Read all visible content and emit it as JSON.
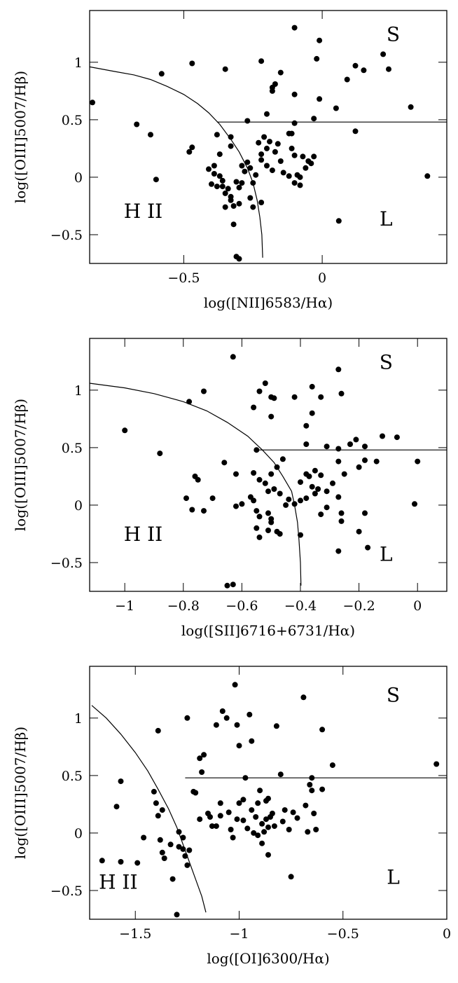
{
  "chart_data": [
    {
      "type": "scatter",
      "xlabel": "log([NII]6583/Hα)",
      "ylabel": "log([OIII]5007/Hβ)",
      "xlim": [
        -0.84,
        0.45
      ],
      "ylim": [
        -0.75,
        1.45
      ],
      "xticks": [
        -0.5,
        0
      ],
      "xticklabels": [
        "−0.5",
        "0"
      ],
      "yticks": [
        -0.5,
        0,
        0.5,
        1
      ],
      "yticklabels": [
        "−0.5",
        "0",
        "0.5",
        "1"
      ],
      "region_labels": {
        "hii": "H  II",
        "seyfert": "S",
        "liner": "L"
      },
      "divider": {
        "y": 0.48,
        "x_start": -0.38,
        "x_end": 0.45
      },
      "boundary": [
        [
          -0.84,
          0.96
        ],
        [
          -0.75,
          0.92
        ],
        [
          -0.68,
          0.89
        ],
        [
          -0.62,
          0.85
        ],
        [
          -0.56,
          0.79
        ],
        [
          -0.5,
          0.72
        ],
        [
          -0.45,
          0.64
        ],
        [
          -0.41,
          0.56
        ],
        [
          -0.37,
          0.46
        ],
        [
          -0.33,
          0.33
        ],
        [
          -0.3,
          0.22
        ],
        [
          -0.27,
          0.08
        ],
        [
          -0.25,
          -0.05
        ],
        [
          -0.235,
          -0.2
        ],
        [
          -0.225,
          -0.35
        ],
        [
          -0.218,
          -0.5
        ],
        [
          -0.215,
          -0.7
        ]
      ],
      "points": [
        [
          -0.83,
          0.65
        ],
        [
          -0.67,
          0.46
        ],
        [
          -0.62,
          0.37
        ],
        [
          -0.58,
          0.9
        ],
        [
          -0.6,
          -0.02
        ],
        [
          -0.47,
          0.99
        ],
        [
          -0.48,
          0.22
        ],
        [
          -0.47,
          0.26
        ],
        [
          -0.35,
          0.94
        ],
        [
          -0.22,
          1.01
        ],
        [
          -0.1,
          1.3
        ],
        [
          -0.01,
          1.19
        ],
        [
          -0.02,
          1.03
        ],
        [
          0.22,
          1.07
        ],
        [
          0.12,
          0.97
        ],
        [
          0.15,
          0.93
        ],
        [
          0.24,
          0.94
        ],
        [
          0.32,
          0.61
        ],
        [
          0.09,
          0.85
        ],
        [
          -0.15,
          0.91
        ],
        [
          -0.18,
          0.78
        ],
        [
          -0.17,
          0.81
        ],
        [
          -0.18,
          0.75
        ],
        [
          -0.1,
          0.72
        ],
        [
          -0.01,
          0.68
        ],
        [
          0.05,
          0.6
        ],
        [
          -0.2,
          0.55
        ],
        [
          -0.27,
          0.49
        ],
        [
          -0.1,
          0.47
        ],
        [
          -0.03,
          0.51
        ],
        [
          0.12,
          0.4
        ],
        [
          -0.38,
          0.37
        ],
        [
          -0.33,
          0.35
        ],
        [
          -0.33,
          0.27
        ],
        [
          -0.37,
          0.2
        ],
        [
          -0.39,
          0.1
        ],
        [
          -0.41,
          0.07
        ],
        [
          -0.39,
          0.03
        ],
        [
          -0.37,
          0.01
        ],
        [
          -0.36,
          -0.03
        ],
        [
          -0.4,
          -0.06
        ],
        [
          -0.38,
          -0.08
        ],
        [
          -0.34,
          -0.1
        ],
        [
          -0.35,
          -0.14
        ],
        [
          -0.33,
          -0.17
        ],
        [
          -0.33,
          -0.2
        ],
        [
          -0.32,
          -0.25
        ],
        [
          -0.3,
          -0.23
        ],
        [
          -0.35,
          -0.26
        ],
        [
          -0.32,
          -0.41
        ],
        [
          -0.31,
          -0.69
        ],
        [
          -0.3,
          -0.71
        ],
        [
          -0.26,
          -0.18
        ],
        [
          -0.25,
          -0.26
        ],
        [
          -0.27,
          0.13
        ],
        [
          -0.26,
          0.08
        ],
        [
          -0.24,
          0.02
        ],
        [
          -0.25,
          -0.05
        ],
        [
          -0.22,
          0.2
        ],
        [
          -0.23,
          0.3
        ],
        [
          -0.21,
          0.35
        ],
        [
          -0.2,
          0.25
        ],
        [
          -0.22,
          0.15
        ],
        [
          -0.19,
          0.31
        ],
        [
          -0.17,
          0.22
        ],
        [
          -0.16,
          0.29
        ],
        [
          -0.15,
          0.14
        ],
        [
          -0.14,
          0.04
        ],
        [
          -0.12,
          0.38
        ],
        [
          -0.11,
          0.38
        ],
        [
          -0.11,
          0.25
        ],
        [
          -0.1,
          0.19
        ],
        [
          -0.12,
          0.01
        ],
        [
          -0.09,
          0.02
        ],
        [
          -0.1,
          -0.05
        ],
        [
          -0.08,
          -0.07
        ],
        [
          -0.07,
          0.18
        ],
        [
          -0.05,
          0.14
        ],
        [
          -0.04,
          0.12
        ],
        [
          -0.03,
          0.18
        ],
        [
          -0.06,
          0.08
        ],
        [
          -0.08,
          0.0
        ],
        [
          -0.18,
          0.06
        ],
        [
          -0.2,
          0.1
        ],
        [
          -0.22,
          -0.22
        ],
        [
          -0.28,
          0.05
        ],
        [
          -0.29,
          0.1
        ],
        [
          -0.29,
          -0.05
        ],
        [
          -0.31,
          -0.04
        ],
        [
          -0.3,
          -0.09
        ],
        [
          -0.36,
          -0.08
        ],
        [
          0.06,
          -0.38
        ],
        [
          0.38,
          0.01
        ]
      ]
    },
    {
      "type": "scatter",
      "xlabel": "log([SII]6716+6731/Hα)",
      "ylabel": "log([OIII]5007/Hβ)",
      "xlim": [
        -1.12,
        0.1
      ],
      "ylim": [
        -0.75,
        1.45
      ],
      "xticks": [
        -1,
        -0.8,
        -0.6,
        -0.4,
        -0.2,
        0
      ],
      "xticklabels": [
        "−1",
        "−0.8",
        "−0.6",
        "−0.4",
        "−0.2",
        "0"
      ],
      "yticks": [
        -0.5,
        0,
        0.5,
        1
      ],
      "yticklabels": [
        "−0.5",
        "0",
        "0.5",
        "1"
      ],
      "region_labels": {
        "hii": "H  II",
        "seyfert": "S",
        "liner": "L"
      },
      "divider": {
        "y": 0.48,
        "x_start": -0.55,
        "x_end": 0.1
      },
      "boundary": [
        [
          -1.12,
          1.06
        ],
        [
          -1.0,
          1.02
        ],
        [
          -0.9,
          0.97
        ],
        [
          -0.8,
          0.9
        ],
        [
          -0.72,
          0.82
        ],
        [
          -0.65,
          0.72
        ],
        [
          -0.58,
          0.6
        ],
        [
          -0.53,
          0.48
        ],
        [
          -0.49,
          0.37
        ],
        [
          -0.46,
          0.25
        ],
        [
          -0.43,
          0.12
        ],
        [
          -0.42,
          0.0
        ],
        [
          -0.41,
          -0.15
        ],
        [
          -0.405,
          -0.3
        ],
        [
          -0.4,
          -0.5
        ],
        [
          -0.398,
          -0.7
        ]
      ],
      "points": [
        [
          -1.0,
          0.65
        ],
        [
          -0.88,
          0.45
        ],
        [
          -0.78,
          0.9
        ],
        [
          -0.73,
          0.99
        ],
        [
          -0.63,
          1.29
        ],
        [
          -0.54,
          0.99
        ],
        [
          -0.52,
          1.06
        ],
        [
          -0.5,
          0.94
        ],
        [
          -0.49,
          0.93
        ],
        [
          -0.5,
          0.77
        ],
        [
          -0.56,
          0.85
        ],
        [
          -0.42,
          0.94
        ],
        [
          -0.36,
          1.03
        ],
        [
          -0.33,
          0.94
        ],
        [
          -0.27,
          1.18
        ],
        [
          -0.26,
          0.97
        ],
        [
          -0.36,
          0.8
        ],
        [
          -0.38,
          0.69
        ],
        [
          -0.38,
          0.53
        ],
        [
          -0.31,
          0.51
        ],
        [
          -0.27,
          0.49
        ],
        [
          -0.23,
          0.53
        ],
        [
          -0.18,
          0.51
        ],
        [
          -0.21,
          0.57
        ],
        [
          -0.12,
          0.6
        ],
        [
          -0.07,
          0.59
        ],
        [
          -0.18,
          0.39
        ],
        [
          -0.2,
          0.33
        ],
        [
          -0.27,
          0.38
        ],
        [
          -0.25,
          0.27
        ],
        [
          -0.35,
          0.3
        ],
        [
          -0.29,
          0.19
        ],
        [
          -0.31,
          0.12
        ],
        [
          -0.33,
          0.26
        ],
        [
          -0.37,
          0.25
        ],
        [
          -0.38,
          0.27
        ],
        [
          -0.4,
          0.2
        ],
        [
          -0.36,
          0.16
        ],
        [
          -0.34,
          0.14
        ],
        [
          -0.35,
          0.1
        ],
        [
          -0.38,
          0.06
        ],
        [
          -0.4,
          0.04
        ],
        [
          -0.42,
          0.01
        ],
        [
          -0.44,
          0.05
        ],
        [
          -0.45,
          0.0
        ],
        [
          -0.47,
          0.1
        ],
        [
          -0.49,
          0.14
        ],
        [
          -0.51,
          0.12
        ],
        [
          -0.52,
          0.19
        ],
        [
          -0.54,
          0.22
        ],
        [
          -0.55,
          0.48
        ],
        [
          -0.56,
          0.28
        ],
        [
          -0.5,
          0.27
        ],
        [
          -0.48,
          0.33
        ],
        [
          -0.46,
          0.4
        ],
        [
          -0.57,
          0.07
        ],
        [
          -0.56,
          0.04
        ],
        [
          -0.55,
          -0.05
        ],
        [
          -0.54,
          -0.1
        ],
        [
          -0.51,
          -0.07
        ],
        [
          -0.5,
          -0.12
        ],
        [
          -0.5,
          -0.15
        ],
        [
          -0.51,
          -0.22
        ],
        [
          -0.48,
          -0.23
        ],
        [
          -0.47,
          -0.25
        ],
        [
          -0.54,
          -0.28
        ],
        [
          -0.55,
          -0.2
        ],
        [
          -0.6,
          0.01
        ],
        [
          -0.62,
          -0.01
        ],
        [
          -0.66,
          0.37
        ],
        [
          -0.62,
          0.27
        ],
        [
          -0.7,
          0.06
        ],
        [
          -0.73,
          -0.05
        ],
        [
          -0.77,
          -0.04
        ],
        [
          -0.75,
          0.22
        ],
        [
          -0.76,
          0.25
        ],
        [
          -0.79,
          0.06
        ],
        [
          -0.65,
          -0.7
        ],
        [
          -0.63,
          -0.69
        ],
        [
          -0.4,
          -0.26
        ],
        [
          -0.33,
          -0.08
        ],
        [
          -0.31,
          -0.02
        ],
        [
          -0.27,
          0.07
        ],
        [
          -0.26,
          -0.07
        ],
        [
          -0.26,
          -0.14
        ],
        [
          -0.27,
          -0.4
        ],
        [
          -0.2,
          -0.23
        ],
        [
          -0.17,
          -0.37
        ],
        [
          -0.18,
          -0.07
        ],
        [
          -0.14,
          0.38
        ],
        [
          -0.0,
          0.38
        ],
        [
          -0.01,
          0.01
        ]
      ]
    },
    {
      "type": "scatter",
      "xlabel": "log([OI]6300/Hα)",
      "ylabel": "log([OIII]5007/Hβ)",
      "xlim": [
        -1.72,
        0.0
      ],
      "ylim": [
        -0.75,
        1.45
      ],
      "xticks": [
        -1.5,
        -1,
        -0.5,
        0
      ],
      "xticklabels": [
        "−1.5",
        "−1",
        "−0.5",
        "0"
      ],
      "yticks": [
        -0.5,
        0,
        0.5,
        1
      ],
      "yticklabels": [
        "−0.5",
        "0",
        "0.5",
        "1"
      ],
      "region_labels": {
        "hii": "H  II",
        "seyfert": "S",
        "liner": "L"
      },
      "divider": {
        "y": 0.48,
        "x_start": -1.26,
        "x_end": 0.0
      },
      "boundary": [
        [
          -1.71,
          1.11
        ],
        [
          -1.64,
          1.0
        ],
        [
          -1.57,
          0.86
        ],
        [
          -1.5,
          0.7
        ],
        [
          -1.44,
          0.54
        ],
        [
          -1.39,
          0.38
        ],
        [
          -1.34,
          0.21
        ],
        [
          -1.3,
          0.05
        ],
        [
          -1.27,
          -0.1
        ],
        [
          -1.24,
          -0.25
        ],
        [
          -1.21,
          -0.4
        ],
        [
          -1.18,
          -0.55
        ],
        [
          -1.16,
          -0.69
        ]
      ],
      "points": [
        [
          -1.66,
          -0.24
        ],
        [
          -1.59,
          0.23
        ],
        [
          -1.57,
          0.45
        ],
        [
          -1.57,
          -0.25
        ],
        [
          -1.49,
          -0.26
        ],
        [
          -1.46,
          -0.04
        ],
        [
          -1.41,
          0.36
        ],
        [
          -1.4,
          0.26
        ],
        [
          -1.39,
          0.89
        ],
        [
          -1.39,
          0.15
        ],
        [
          -1.37,
          0.2
        ],
        [
          -1.38,
          -0.06
        ],
        [
          -1.37,
          -0.17
        ],
        [
          -1.36,
          -0.22
        ],
        [
          -1.33,
          -0.1
        ],
        [
          -1.32,
          -0.4
        ],
        [
          -1.29,
          0.01
        ],
        [
          -1.29,
          -0.12
        ],
        [
          -1.27,
          -0.14
        ],
        [
          -1.27,
          -0.04
        ],
        [
          -1.26,
          -0.2
        ],
        [
          -1.25,
          -0.28
        ],
        [
          -1.24,
          -0.15
        ],
        [
          -1.22,
          0.36
        ],
        [
          -1.21,
          0.35
        ],
        [
          -1.19,
          0.12
        ],
        [
          -1.19,
          0.65
        ],
        [
          -1.18,
          0.53
        ],
        [
          -1.17,
          0.68
        ],
        [
          -1.15,
          0.17
        ],
        [
          -1.14,
          0.14
        ],
        [
          -1.13,
          0.06
        ],
        [
          -1.11,
          0.06
        ],
        [
          -1.09,
          0.26
        ],
        [
          -1.09,
          0.15
        ],
        [
          -1.08,
          1.06
        ],
        [
          -1.06,
          1.0
        ],
        [
          -1.05,
          0.18
        ],
        [
          -1.04,
          0.03
        ],
        [
          -1.03,
          -0.04
        ],
        [
          -1.01,
          0.12
        ],
        [
          -1.01,
          0.94
        ],
        [
          -1.0,
          0.76
        ],
        [
          -1.0,
          0.26
        ],
        [
          -0.98,
          0.29
        ],
        [
          -0.98,
          0.11
        ],
        [
          -0.97,
          0.48
        ],
        [
          -0.96,
          0.04
        ],
        [
          -0.94,
          0.8
        ],
        [
          -0.94,
          0.2
        ],
        [
          -0.93,
          0.0
        ],
        [
          -0.92,
          0.14
        ],
        [
          -0.91,
          0.26
        ],
        [
          -0.9,
          0.37
        ],
        [
          -0.89,
          0.08
        ],
        [
          -0.88,
          0.01
        ],
        [
          -0.87,
          0.28
        ],
        [
          -0.87,
          0.12
        ],
        [
          -0.86,
          0.3
        ],
        [
          -0.86,
          0.05
        ],
        [
          -0.85,
          0.14
        ],
        [
          -0.84,
          0.17
        ],
        [
          -0.83,
          0.06
        ],
        [
          -0.82,
          0.93
        ],
        [
          -0.8,
          0.51
        ],
        [
          -0.79,
          0.1
        ],
        [
          -0.78,
          0.2
        ],
        [
          -0.76,
          0.03
        ],
        [
          -0.74,
          0.18
        ],
        [
          -0.72,
          0.13
        ],
        [
          -0.69,
          1.18
        ],
        [
          -0.68,
          0.24
        ],
        [
          -0.67,
          0.01
        ],
        [
          -0.66,
          0.42
        ],
        [
          -0.65,
          0.48
        ],
        [
          -0.65,
          0.37
        ],
        [
          -0.64,
          0.17
        ],
        [
          -0.63,
          0.03
        ],
        [
          -0.6,
          0.9
        ],
        [
          -0.6,
          0.38
        ],
        [
          -0.55,
          0.59
        ],
        [
          -0.75,
          -0.38
        ],
        [
          -0.89,
          -0.09
        ],
        [
          -0.86,
          -0.19
        ],
        [
          -0.91,
          -0.02
        ],
        [
          -0.95,
          1.03
        ],
        [
          -1.02,
          1.29
        ],
        [
          -1.11,
          0.94
        ],
        [
          -1.25,
          1.0
        ],
        [
          -1.3,
          -0.71
        ],
        [
          -0.05,
          0.6
        ]
      ]
    }
  ]
}
